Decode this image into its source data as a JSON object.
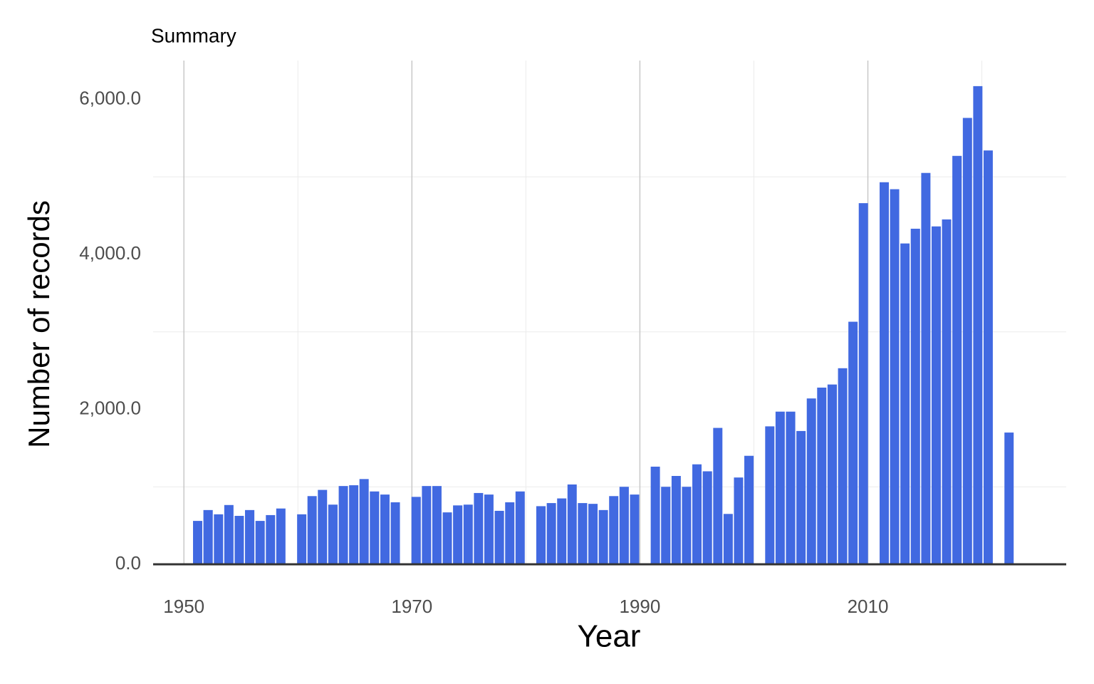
{
  "chart_data": {
    "type": "histogram",
    "title": "Summary",
    "xlabel": "Year",
    "ylabel": "Number of records",
    "color": "#4169e1",
    "bins": [
      1950.75,
      1951.66,
      1952.58,
      1953.49,
      1954.4,
      1955.31,
      1956.23,
      1957.14,
      1958.05,
      1958.96,
      1959.88,
      1960.79,
      1961.7,
      1962.61,
      1963.53,
      1964.44,
      1965.35,
      1966.26,
      1967.18,
      1968.09,
      1969.0,
      1969.91,
      1970.83,
      1971.74,
      1972.65,
      1973.56,
      1974.48,
      1975.39,
      1976.3,
      1977.21,
      1978.13,
      1979.04,
      1979.95,
      1980.86,
      1981.78,
      1982.69,
      1983.6,
      1984.51,
      1985.43,
      1986.34,
      1987.25,
      1988.16,
      1989.08,
      1989.99,
      1990.9,
      1991.81,
      1992.73,
      1993.64,
      1994.55,
      1995.46,
      1996.38,
      1997.29,
      1998.2,
      1999.11,
      2000.03,
      2000.94,
      2001.85,
      2002.76,
      2003.68,
      2004.59,
      2005.5,
      2006.41,
      2007.33,
      2008.24,
      2009.15,
      2010.06,
      2010.98,
      2011.89,
      2012.8,
      2013.71,
      2014.63,
      2015.54,
      2016.45,
      2017.36,
      2018.28,
      2019.19,
      2020.1,
      2021.01,
      2021.93,
      2022.84
    ],
    "values": [
      560,
      700,
      645,
      765,
      625,
      700,
      560,
      635,
      720,
      0,
      645,
      880,
      960,
      770,
      1010,
      1020,
      1100,
      940,
      900,
      800,
      0,
      870,
      1010,
      1010,
      670,
      760,
      770,
      920,
      900,
      690,
      800,
      940,
      0,
      750,
      790,
      850,
      1030,
      790,
      780,
      700,
      880,
      1000,
      900,
      0,
      1260,
      1000,
      1140,
      1000,
      1290,
      1200,
      1760,
      650,
      1120,
      1400,
      0,
      1780,
      1970,
      1970,
      1720,
      2140,
      2280,
      2320,
      2530,
      3130,
      4660,
      0,
      4930,
      4840,
      4140,
      4330,
      5050,
      4360,
      4450,
      5270,
      5760,
      6170,
      5340,
      0,
      1700
    ],
    "xlim": [
      1947.3,
      2027.4
    ],
    "xticks": [
      1950,
      1970,
      1990,
      2010
    ],
    "xminorticks": [
      1960,
      1980,
      2000,
      2020
    ],
    "ylim": [
      0,
      6500
    ],
    "yticks": [
      {
        "value": 0,
        "label": "0.0"
      },
      {
        "value": 2000,
        "label": "2,000.0"
      },
      {
        "value": 4000,
        "label": "4,000.0"
      },
      {
        "value": 6000,
        "label": "6,000.0"
      }
    ],
    "yminorticks": [
      1000,
      3000,
      5000
    ],
    "grid": "x"
  }
}
